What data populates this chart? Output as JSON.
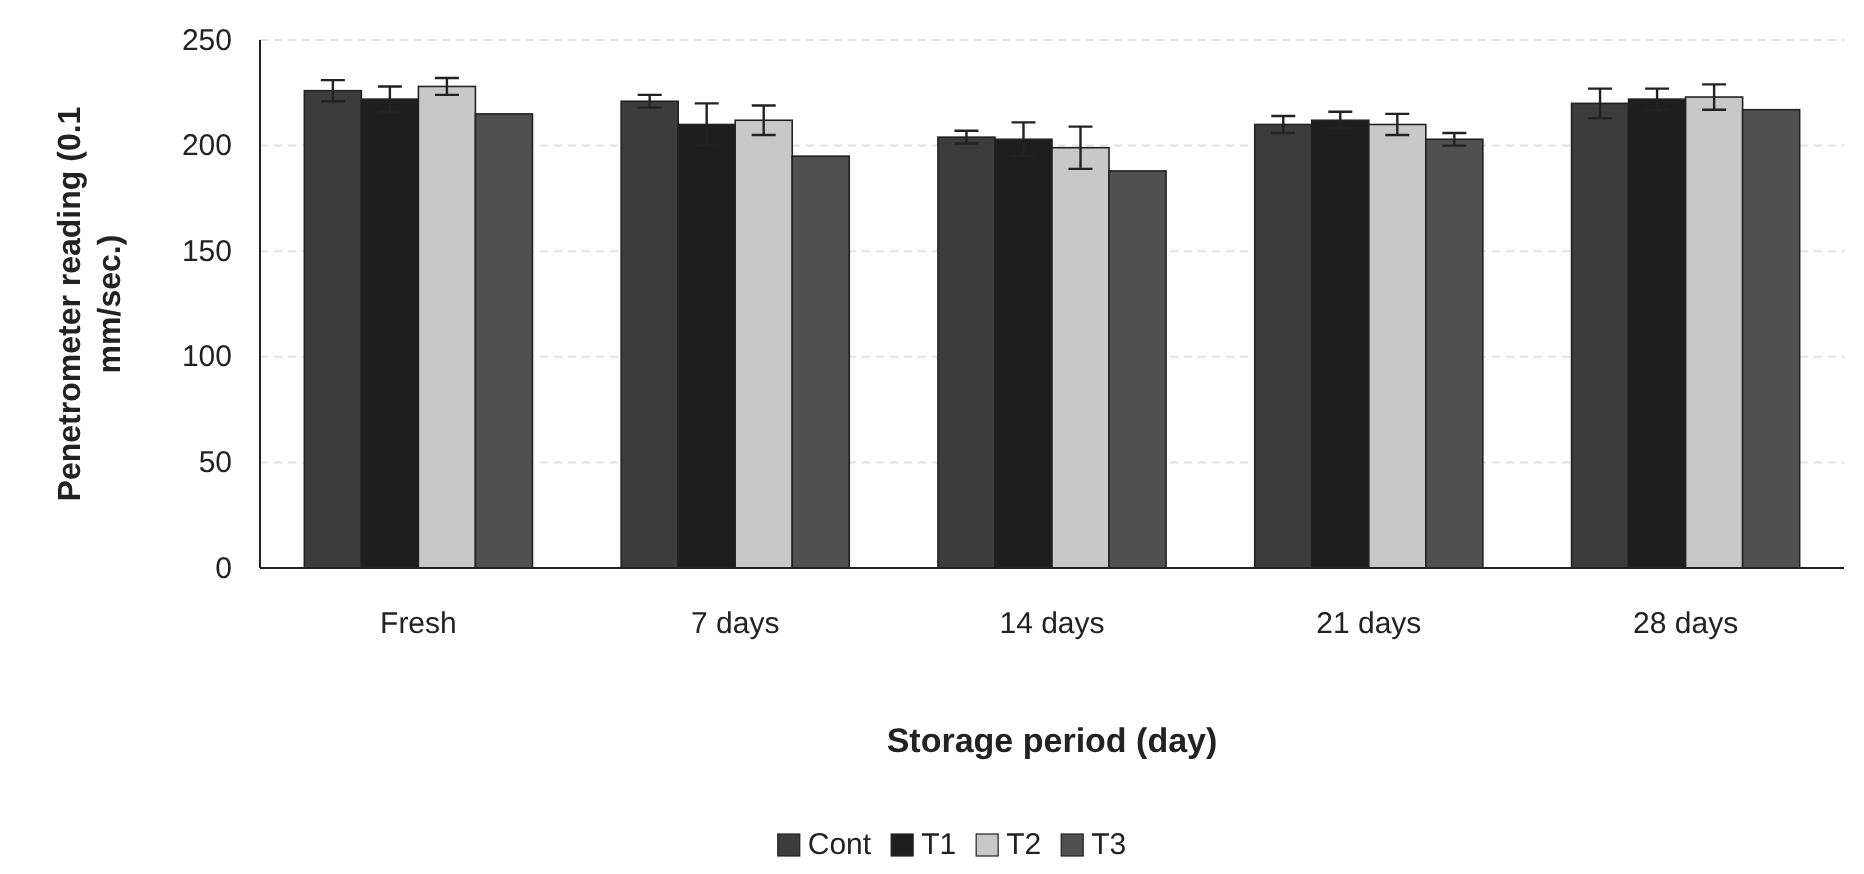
{
  "chart_data": {
    "type": "bar",
    "xlabel": "Storage period (day)",
    "ylabel": "Penetrometer reading (0.1 mm/sec.)",
    "categories": [
      "Fresh",
      "7 days",
      "14 days",
      "21 days",
      "28 days"
    ],
    "series": [
      {
        "name": "Cont",
        "color": "#3c3c3c",
        "values": [
          226,
          221,
          204,
          210,
          220
        ],
        "errors": [
          5,
          3,
          3,
          4,
          7
        ]
      },
      {
        "name": "T1",
        "color": "#1e1e1e",
        "values": [
          222,
          210,
          203,
          212,
          222
        ],
        "errors": [
          6,
          10,
          8,
          4,
          5
        ]
      },
      {
        "name": "T2",
        "color": "#c8c8c8",
        "values": [
          228,
          212,
          199,
          210,
          223
        ],
        "errors": [
          4,
          7,
          10,
          5,
          6
        ]
      },
      {
        "name": "T3",
        "color": "#505050",
        "values": [
          215,
          195,
          188,
          203,
          217
        ],
        "errors": [
          null,
          null,
          null,
          3,
          null
        ]
      }
    ],
    "ylim": [
      0,
      250
    ],
    "yticks": [
      0,
      50,
      100,
      150,
      200,
      250
    ],
    "grid": "y",
    "legend": "bottom"
  }
}
